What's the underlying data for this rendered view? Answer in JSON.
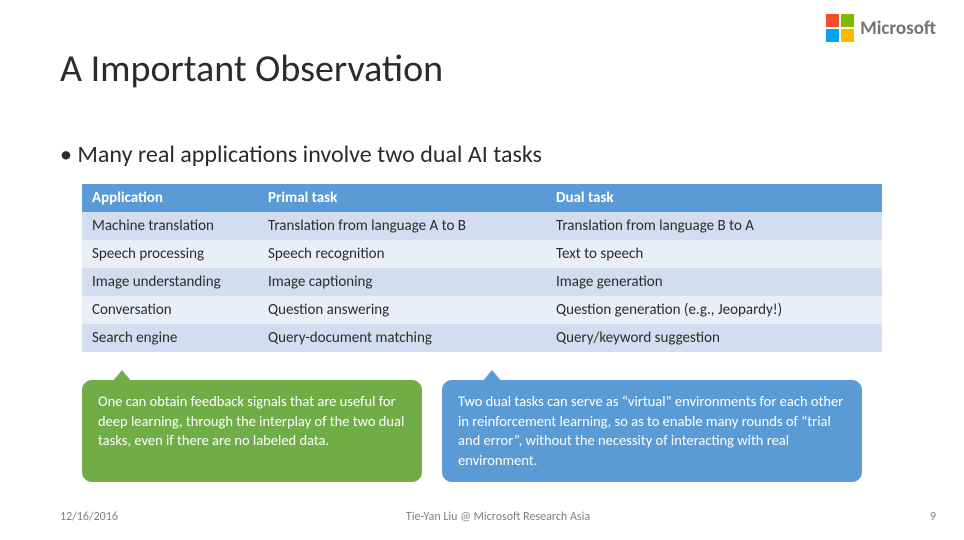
{
  "logo_text": "Microsoft",
  "title": "A Important Observation",
  "bullet": "Many real applications involve two dual AI tasks",
  "table": {
    "header_bg": "#5b9bd5",
    "row_alt_bg": "#eaeff7",
    "row_bg": "#d2deef",
    "columns": [
      "Application",
      "Primal task",
      "Dual task"
    ],
    "col_widths": [
      "22%",
      "36%",
      "42%"
    ],
    "rows": [
      [
        "Machine translation",
        "Translation from language A to B",
        "Translation from language B to A"
      ],
      [
        "Speech processing",
        "Speech recognition",
        "Text to speech"
      ],
      [
        "Image understanding",
        "Image captioning",
        "Image generation"
      ],
      [
        "Conversation",
        "Question answering",
        "Question generation (e.g., Jeopardy!)"
      ],
      [
        "Search engine",
        "Query-document matching",
        "Query/keyword suggestion"
      ]
    ]
  },
  "callouts": {
    "green": "One can obtain feedback signals that are useful for deep learning, through the interplay of the two dual tasks, even if there are no labeled data.",
    "blue": "Two dual tasks can serve as “virtual” environments for each other in reinforcement learning, so as to enable many rounds of “trial and error”, without the necessity of interacting with real environment."
  },
  "footer": {
    "date": "12/16/2016",
    "center": "Tie-Yan Liu @ Microsoft Research Asia",
    "page": "9"
  }
}
